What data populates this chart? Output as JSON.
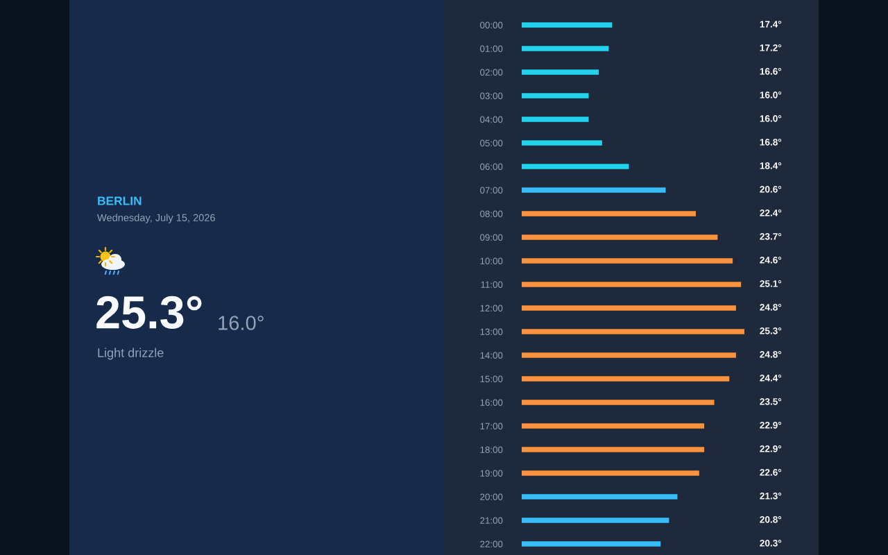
{
  "chart_data": {
    "type": "bar",
    "orientation": "horizontal",
    "title": "BERLIN",
    "subtitle": "Wednesday, July 15, 2026",
    "annotations": [
      "25.3°",
      "16.0°",
      "Light drizzle"
    ],
    "categories": [
      "00:00",
      "01:00",
      "02:00",
      "03:00",
      "04:00",
      "05:00",
      "06:00",
      "07:00",
      "08:00",
      "09:00",
      "10:00",
      "11:00",
      "12:00",
      "13:00",
      "14:00",
      "15:00",
      "16:00",
      "17:00",
      "18:00",
      "19:00",
      "20:00",
      "21:00",
      "22:00"
    ],
    "values": [
      17.4,
      17.2,
      16.6,
      16.0,
      16.0,
      16.8,
      18.4,
      20.6,
      22.4,
      23.7,
      24.6,
      25.1,
      24.8,
      25.3,
      24.8,
      24.4,
      23.5,
      22.9,
      22.9,
      22.6,
      21.3,
      20.8,
      20.3
    ],
    "colors": [
      "#22d3ee",
      "#22d3ee",
      "#22d3ee",
      "#22d3ee",
      "#22d3ee",
      "#22d3ee",
      "#22d3ee",
      "#38bdf8",
      "#fb923c",
      "#fb923c",
      "#fb923c",
      "#fb923c",
      "#fb923c",
      "#fb923c",
      "#fb923c",
      "#fb923c",
      "#fb923c",
      "#fb923c",
      "#fb923c",
      "#fb923c",
      "#38bdf8",
      "#38bdf8",
      "#38bdf8"
    ],
    "value_labels": [
      "17.4°",
      "17.2°",
      "16.6°",
      "16.0°",
      "16.0°",
      "16.8°",
      "18.4°",
      "20.6°",
      "22.4°",
      "23.7°",
      "24.6°",
      "25.1°",
      "24.8°",
      "25.3°",
      "24.8°",
      "24.4°",
      "23.5°",
      "22.9°",
      "22.9°",
      "22.6°",
      "21.3°",
      "20.8°",
      "20.3°"
    ],
    "xlim": [
      12,
      25.3
    ],
    "tick_labels": "y"
  }
}
